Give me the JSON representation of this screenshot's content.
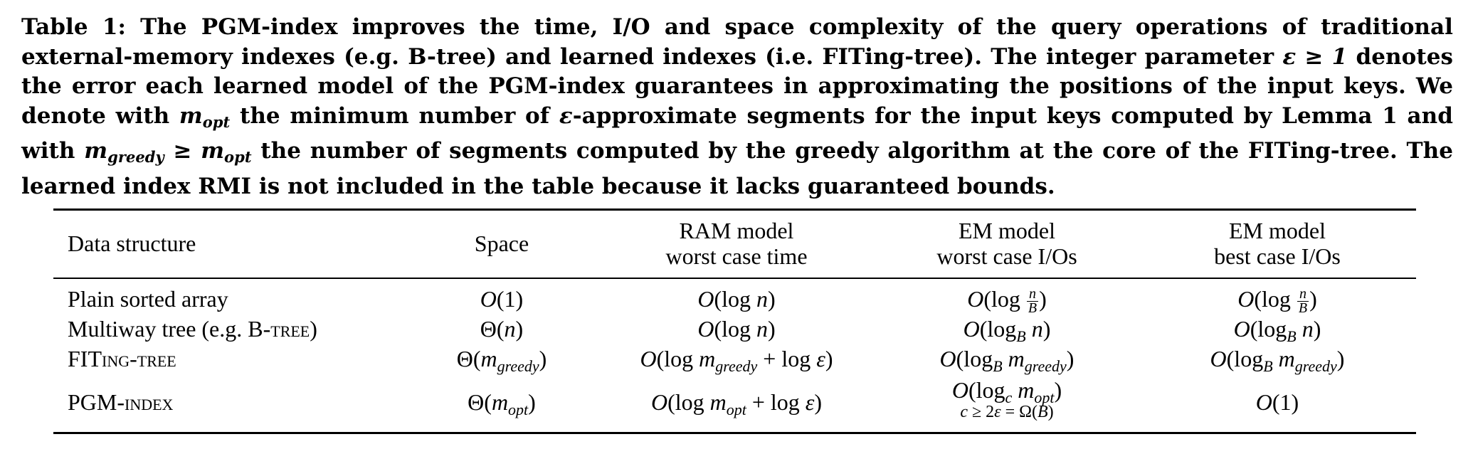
{
  "caption": {
    "part1": "Table 1: The PGM-index improves the time, I/O and space complexity of the query operations of traditional external-memory indexes (e.g. B-tree) and learned indexes (i.e. FITing-tree). The integer parameter ",
    "eps_ge_1": "ε ≥ 1",
    "part2": " denotes the error each learned model of the PGM-index guarantees in approximating the positions of the input keys. We denote with ",
    "m": "m",
    "opt": "opt",
    "part3": " the minimum number of ",
    "eps": "ε",
    "part4": "-approximate segments for the input keys computed by Lemma 1 and with ",
    "greedy": "greedy",
    "ge": " ≥ ",
    "part5": " the number of segments computed by the greedy algorithm at the core of the FITing-tree. The learned index RMI is not included in the table because it lacks guaranteed bounds."
  },
  "table": {
    "headers": [
      {
        "line1": "Data structure"
      },
      {
        "line1": "Space"
      },
      {
        "line1": "RAM model",
        "line2": "worst case time"
      },
      {
        "line1": "EM model",
        "line2": "worst case I/Os"
      },
      {
        "line1": "EM model",
        "line2": "best case I/Os"
      }
    ],
    "rows": [
      {
        "name": "Plain sorted array",
        "space": "O(1)",
        "ram": "O(log n)",
        "em_worst": "O(log n/B)",
        "em_best": "O(log n/B)"
      },
      {
        "name_prefix": "Multiway tree (e.g. ",
        "name_sc": "B-tree",
        "name_suffix": ")",
        "space": "Θ(n)",
        "ram": "O(log n)",
        "em_worst": "O(log_B n)",
        "em_best": "O(log_B n)"
      },
      {
        "name_sc": "FITing-tree",
        "space": "Θ(m_greedy)",
        "ram": "O(log m_greedy + log ε)",
        "em_worst": "O(log_B m_greedy)",
        "em_best": "O(log_B m_greedy)"
      },
      {
        "name_sc": "PGM-index",
        "space": "Θ(m_opt)",
        "ram": "O(log m_opt + log ε)",
        "em_worst": "O(log_c m_opt)",
        "em_worst_note": "c ≥ 2ε = Ω(B)",
        "em_best": "O(1)"
      }
    ],
    "sym": {
      "n": "n",
      "B": "B",
      "c": "c",
      "m": "m",
      "eps": "ε",
      "opt": "opt",
      "greedy": "greedy",
      "O_open": "O(",
      "Theta_open": "Θ(",
      "close": ")",
      "log": "log ",
      "plus": " + ",
      "one": "1",
      "note": "c ≥ 2ε = Ω(B)"
    }
  }
}
